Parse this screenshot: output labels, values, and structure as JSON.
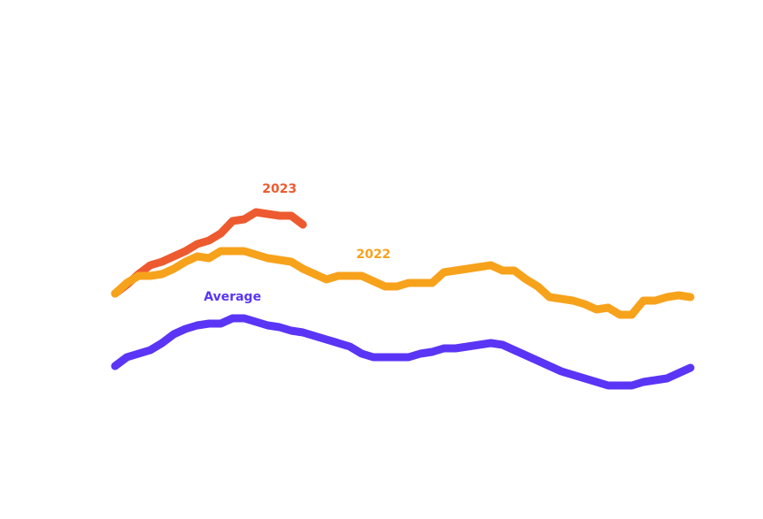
{
  "chart_data": {
    "type": "line",
    "categories": [
      null,
      null,
      null,
      null,
      null,
      null,
      null,
      null,
      null,
      null,
      null,
      null,
      null,
      null,
      null,
      null,
      null,
      null,
      null,
      null,
      null,
      null,
      null,
      null,
      null,
      null,
      null,
      null,
      null,
      null,
      null,
      null,
      null,
      null,
      null,
      null,
      null,
      null,
      null,
      null,
      null,
      null,
      null,
      null,
      null,
      null,
      null,
      null,
      null,
      null
    ],
    "ylim": [
      0,
      100
    ],
    "series": [
      {
        "name": "2023",
        "color": "#ee5a2f",
        "values": [
          42,
          44.5,
          47.5,
          50,
          51,
          52.5,
          54,
          56,
          57,
          59,
          62.5,
          63,
          65,
          64.5,
          64,
          64,
          61.5,
          null,
          null,
          null,
          null,
          null,
          null,
          null,
          null,
          null,
          null,
          null,
          null,
          null,
          null,
          null,
          null,
          null,
          null,
          null,
          null,
          null,
          null,
          null,
          null,
          null,
          null,
          null,
          null,
          null,
          null,
          null,
          null,
          null
        ]
      },
      {
        "name": "2022",
        "color": "#f7a21b",
        "values": [
          42,
          45,
          47,
          47,
          47.5,
          49,
          51,
          52.5,
          52,
          54,
          54,
          54,
          53,
          52,
          51.5,
          51,
          49,
          47.5,
          46,
          47,
          47,
          47,
          45.5,
          44,
          44,
          45,
          45,
          45,
          48,
          48.5,
          49,
          49.5,
          50,
          48.5,
          48.5,
          46,
          44,
          41,
          40.5,
          40,
          39,
          37.5,
          38,
          36,
          36,
          40,
          40,
          41,
          41.5,
          41
        ]
      },
      {
        "name": "Average",
        "color": "#5b35f5",
        "values": [
          21.5,
          24,
          25,
          26,
          28,
          30.5,
          32,
          33,
          33.5,
          33.5,
          35,
          35,
          34,
          33,
          32.5,
          31.5,
          31,
          30,
          29,
          28,
          27,
          25,
          24,
          24,
          24,
          24,
          25,
          25.5,
          26.5,
          26.5,
          27,
          27.5,
          28,
          27.5,
          26,
          24.5,
          23,
          21.5,
          20,
          19,
          18,
          17,
          16,
          16,
          16,
          17,
          17.5,
          18,
          19.5,
          21
        ]
      }
    ]
  }
}
